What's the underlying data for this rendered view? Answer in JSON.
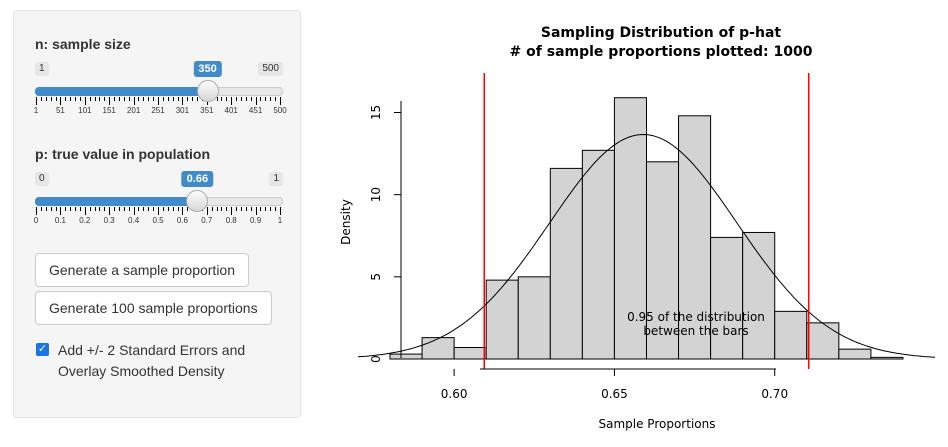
{
  "sidebar": {
    "n_slider": {
      "label": "n: sample size",
      "min": 1,
      "max": 500,
      "value": 350,
      "min_label": "1",
      "max_label": "500",
      "value_label": "350",
      "tick_labels": [
        "1",
        "51",
        "101",
        "151",
        "201",
        "251",
        "301",
        "351",
        "401",
        "451",
        "500"
      ]
    },
    "p_slider": {
      "label": "p: true value in population",
      "min": 0,
      "max": 1,
      "value": 0.66,
      "min_label": "0",
      "max_label": "1",
      "value_label": "0.66",
      "tick_labels": [
        "0",
        "0.1",
        "0.2",
        "0.3",
        "0.4",
        "0.5",
        "0.6",
        "0.7",
        "0.8",
        "0.9",
        "1"
      ]
    },
    "buttons": {
      "generate_one": "Generate a sample proportion",
      "generate_100": "Generate 100 sample proportions"
    },
    "checkbox": {
      "checked": true,
      "label": "Add +/- 2 Standard Errors and Overlay Smoothed Density"
    }
  },
  "chart_data": {
    "type": "histogram",
    "title_line1": "Sampling Distribution of p-hat",
    "title_line2": "# of sample proportions plotted: 1000",
    "xlabel": "Sample Proportions",
    "ylabel": "Density",
    "xlim": [
      0.58,
      0.745
    ],
    "ylim": [
      0,
      15.7
    ],
    "x_ticks": [
      0.6,
      0.65,
      0.7
    ],
    "x_tick_labels": [
      "0.60",
      "0.65",
      "0.70"
    ],
    "y_ticks": [
      0,
      5,
      10,
      15
    ],
    "y_tick_labels": [
      "0",
      "5",
      "10",
      "15"
    ],
    "bin_width": 0.01,
    "bins": [
      {
        "x0": 0.58,
        "x1": 0.59,
        "density": 0.3
      },
      {
        "x0": 0.59,
        "x1": 0.6,
        "density": 1.3
      },
      {
        "x0": 0.6,
        "x1": 0.61,
        "density": 0.7
      },
      {
        "x0": 0.61,
        "x1": 0.62,
        "density": 4.8
      },
      {
        "x0": 0.62,
        "x1": 0.63,
        "density": 5.0
      },
      {
        "x0": 0.63,
        "x1": 0.64,
        "density": 11.6
      },
      {
        "x0": 0.64,
        "x1": 0.65,
        "density": 12.7
      },
      {
        "x0": 0.65,
        "x1": 0.66,
        "density": 15.9
      },
      {
        "x0": 0.66,
        "x1": 0.67,
        "density": 12.0
      },
      {
        "x0": 0.67,
        "x1": 0.68,
        "density": 14.8
      },
      {
        "x0": 0.68,
        "x1": 0.69,
        "density": 7.4
      },
      {
        "x0": 0.69,
        "x1": 0.7,
        "density": 7.7
      },
      {
        "x0": 0.7,
        "x1": 0.71,
        "density": 2.9
      },
      {
        "x0": 0.71,
        "x1": 0.72,
        "density": 2.2
      },
      {
        "x0": 0.72,
        "x1": 0.73,
        "density": 0.6
      },
      {
        "x0": 0.73,
        "x1": 0.74,
        "density": 0.1
      }
    ],
    "reference_lines": [
      0.6094,
      0.7106
    ],
    "smoothed_density": {
      "mean": 0.659,
      "sd": 0.0292
    },
    "annotation_line1": "0.95 of the distribution",
    "annotation_line2": "between the bars",
    "colors": {
      "bar_fill": "#d3d3d3",
      "bar_stroke": "#000000",
      "reference_line": "#ff0000",
      "density_curve": "#000000"
    }
  }
}
